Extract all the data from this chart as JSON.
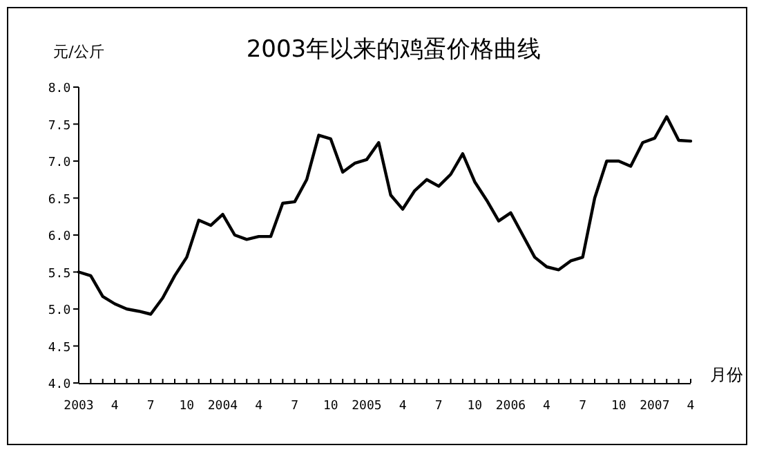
{
  "chart_data": {
    "type": "line",
    "title": "2003年以来的鸡蛋价格曲线",
    "ylabel": "元/公斤",
    "xlabel": "月份",
    "categories": [
      "2003",
      null,
      null,
      "4",
      null,
      null,
      "7",
      null,
      null,
      "10",
      null,
      null,
      "2004",
      null,
      null,
      "4",
      null,
      null,
      "7",
      null,
      null,
      "10",
      null,
      null,
      "2005",
      null,
      null,
      "4",
      null,
      null,
      "7",
      null,
      null,
      "10",
      null,
      null,
      "2006",
      null,
      null,
      "4",
      null,
      null,
      "7",
      null,
      null,
      "10",
      null,
      null,
      "2007",
      null,
      null,
      "4"
    ],
    "series": [
      {
        "color": "#000000",
        "values": [
          5.5,
          5.45,
          5.17,
          5.07,
          5.0,
          4.97,
          4.93,
          5.15,
          5.45,
          5.7,
          6.2,
          6.13,
          6.28,
          6.0,
          5.94,
          5.98,
          5.98,
          6.43,
          6.45,
          6.75,
          7.35,
          7.3,
          6.85,
          6.97,
          7.02,
          7.25,
          6.54,
          6.35,
          6.6,
          6.75,
          6.66,
          6.82,
          7.1,
          6.72,
          6.47,
          6.19,
          6.3,
          6.0,
          5.7,
          5.57,
          5.53,
          5.65,
          5.7,
          6.5,
          7.0,
          7.0,
          6.93,
          7.25,
          7.31,
          7.6,
          7.28,
          7.27
        ]
      }
    ],
    "ylim": [
      4,
      8
    ],
    "yticks": [
      {
        "value": 4,
        "label": "4.0"
      },
      {
        "value": 4.5,
        "label": "4.5"
      },
      {
        "value": 5,
        "label": "5.0"
      },
      {
        "value": 5.5,
        "label": "5.5"
      },
      {
        "value": 6,
        "label": "6.0"
      },
      {
        "value": 6.5,
        "label": "6.5"
      },
      {
        "value": 7,
        "label": "7.0"
      },
      {
        "value": 7.5,
        "label": "7.5"
      },
      {
        "value": 8,
        "label": "8.0"
      }
    ],
    "grid": false,
    "marker": "none",
    "line_style": "solid"
  }
}
